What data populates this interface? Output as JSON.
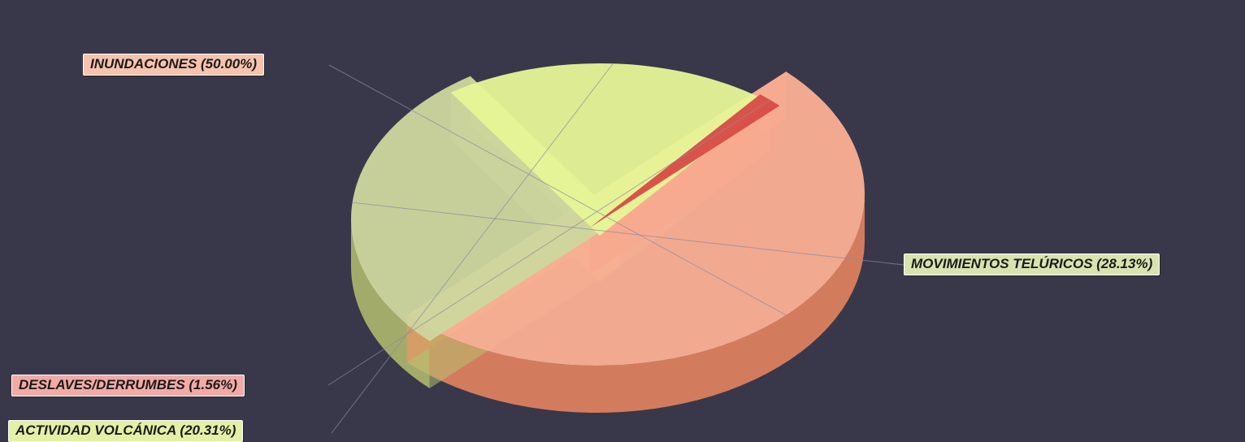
{
  "chart_data": {
    "type": "pie",
    "title": "",
    "slices": [
      {
        "label": "INUNDACIONES (50.00%)",
        "category": "INUNDACIONES",
        "value": 50.0,
        "color": "#fbaf94",
        "side_color": "#ef8860",
        "label_bg": "#f7c3ad"
      },
      {
        "label": "MOVIMIENTOS TELÚRICOS (28.13%)",
        "category": "MOVIMIENTOS TELÚRICOS",
        "value": 28.13,
        "color": "#cdd79e",
        "side_color": "#b6c070",
        "label_bg": "#d9e3b0"
      },
      {
        "label": "ACTIVIDAD VOLCÁNICA (20.31%)",
        "category": "ACTIVIDAD VOLCÁNICA",
        "value": 20.31,
        "color": "#e6f597",
        "side_color": "#cfdc7a",
        "label_bg": "#e4f0a6"
      },
      {
        "label": "DESLAVES/DERRUMBES (1.56%)",
        "category": "DESLAVES/DERRUMBES",
        "value": 1.56,
        "color": "#d84a46",
        "side_color": "#b83834",
        "label_bg": "#f2aaa6"
      }
    ],
    "legend": "none",
    "style": "3d-exploded-pie"
  }
}
